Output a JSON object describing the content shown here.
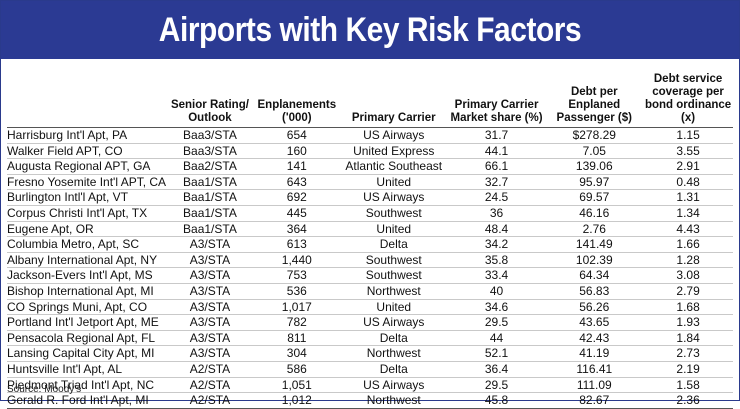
{
  "chart_data": {
    "type": "table",
    "title": "Airports with Key Risk Factors",
    "columns": [
      "",
      "Senior Rating/ Outlook",
      "Enplanements ('000)",
      "Primary Carrier",
      "Primary Carrier Market share (%)",
      "Debt per Enplaned Passenger ($)",
      "Debt service coverage per bond ordinance (x)"
    ],
    "rows": [
      [
        "Harrisburg Int'l Apt, PA",
        "Baa3/STA",
        "654",
        "US Airways",
        "31.7",
        "$278.29",
        "1.15"
      ],
      [
        "Walker Field APT, CO",
        "Baa3/STA",
        "160",
        "United Express",
        "44.1",
        "7.05",
        "3.55"
      ],
      [
        "Augusta Regional APT, GA",
        "Baa2/STA",
        "141",
        "Atlantic Southeast",
        "66.1",
        "139.06",
        "2.91"
      ],
      [
        "Fresno Yosemite Int'l APT, CA",
        "Baa1/STA",
        "643",
        "United",
        "32.7",
        "95.97",
        "0.48"
      ],
      [
        "Burlington Intl'l Apt, VT",
        "Baa1/STA",
        "692",
        "US Airways",
        "24.5",
        "69.57",
        "1.31"
      ],
      [
        "Corpus Christi Int'l Apt, TX",
        "Baa1/STA",
        "445",
        "Southwest",
        "36",
        "46.16",
        "1.34"
      ],
      [
        "Eugene Apt, OR",
        "Baa1/STA",
        "364",
        "United",
        "48.4",
        "2.76",
        "4.43"
      ],
      [
        "Columbia Metro, Apt, SC",
        "A3/STA",
        "613",
        "Delta",
        "34.2",
        "141.49",
        "1.66"
      ],
      [
        "Albany International Apt, NY",
        "A3/STA",
        "1,440",
        "Southwest",
        "35.8",
        "102.39",
        "1.28"
      ],
      [
        "Jackson-Evers Int'l Apt, MS",
        "A3/STA",
        "753",
        "Southwest",
        "33.4",
        "64.34",
        "3.08"
      ],
      [
        "Bishop International Apt, MI",
        "A3/STA",
        "536",
        "Northwest",
        "40",
        "56.83",
        "2.79"
      ],
      [
        "CO Springs Muni, Apt, CO",
        "A3/STA",
        "1,017",
        "United",
        "34.6",
        "56.26",
        "1.68"
      ],
      [
        "Portland Int'l Jetport Apt, ME",
        "A3/STA",
        "782",
        "US Airways",
        "29.5",
        "43.65",
        "1.93"
      ],
      [
        "Pensacola Regional Apt, FL",
        "A3/STA",
        "811",
        "Delta",
        "44",
        "42.43",
        "1.84"
      ],
      [
        "Lansing Capital City Apt, MI",
        "A3/STA",
        "304",
        "Northwest",
        "52.1",
        "41.19",
        "2.73"
      ],
      [
        "Huntsville Int'l Apt, AL",
        "A2/STA",
        "586",
        "Delta",
        "36.4",
        "116.41",
        "2.19"
      ],
      [
        "Piedmont Triad Int'l Apt, NC",
        "A2/STA",
        "1,051",
        "US Airways",
        "29.5",
        "111.09",
        "1.58"
      ],
      [
        "Gerald R. Ford Int'l Apt, MI",
        "A2/STA",
        "1,012",
        "Northwest",
        "45.8",
        "82.67",
        "2.36"
      ]
    ],
    "source": "Source: Moody's"
  },
  "colors": {
    "title_bar": "#2b3a93",
    "title_text": "#ffffff"
  }
}
